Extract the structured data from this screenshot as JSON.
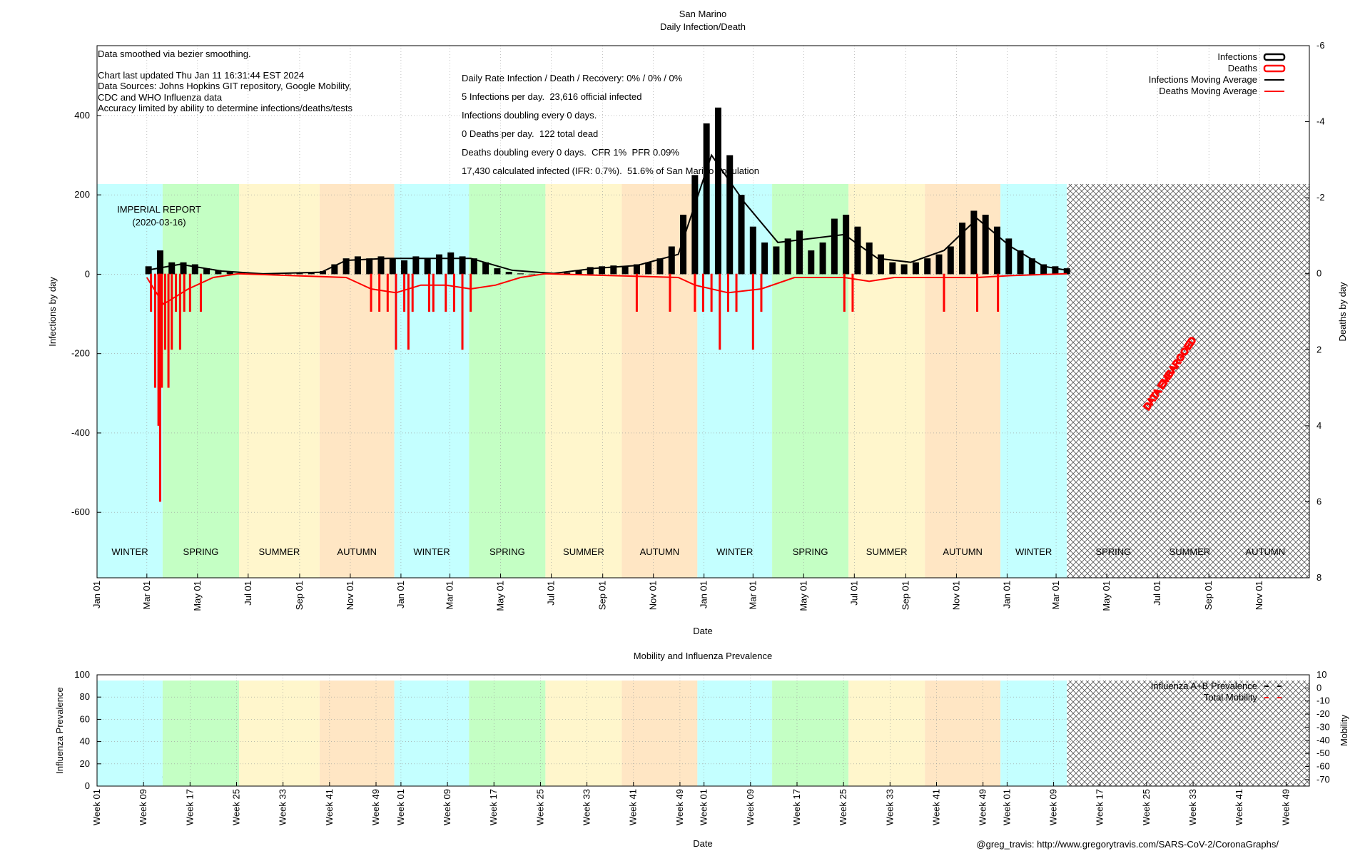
{
  "chart_data": [
    {
      "type": "bar",
      "title": "San Marino",
      "subtitle": "Daily Infection/Death",
      "x_label": "Date",
      "y_label": "Infections by day",
      "y2_label": "Deaths by day",
      "notes": [
        "Data smoothed via bezier smoothing.",
        "Chart last updated Thu Jan 11 16:31:44 EST 2024",
        "Data Sources: Johns Hopkins GIT repository, Google Mobility,",
        "CDC and WHO Influenza data",
        "Accuracy limited by ability to determine infections/deaths/tests"
      ],
      "annotations": [
        "Daily Rate Infection / Death / Recovery: 0% / 0% / 0%",
        "5 Infections per day.  23,616 official infected",
        "Infections doubling every 0 days.",
        "0 Deaths per day.  122 total dead",
        "Deaths doubling every 0 days.  CFR 1%  PFR 0.09%",
        "17,430 calculated infected (IFR: 0.7%).  51.6% of San Marino population"
      ],
      "marker_labels": [
        "IMPERIAL REPORT",
        "(2020-03-16)"
      ],
      "embargo": {
        "label": "DATA EMBARGOED",
        "x": [
          1168,
          1460
        ]
      },
      "seasons": [
        {
          "label": "WINTER",
          "x": [
            0,
            79
          ],
          "color": "#c4ffff"
        },
        {
          "label": "SPRING",
          "x": [
            79,
            171
          ],
          "color": "#c4ffc4"
        },
        {
          "label": "SUMMER",
          "x": [
            171,
            268
          ],
          "color": "#fff6cc"
        },
        {
          "label": "AUTUMN",
          "x": [
            268,
            358
          ],
          "color": "#ffe6c4"
        },
        {
          "label": "WINTER",
          "x": [
            358,
            448
          ],
          "color": "#c4ffff"
        },
        {
          "label": "SPRING",
          "x": [
            448,
            540
          ],
          "color": "#c4ffc4"
        },
        {
          "label": "SUMMER",
          "x": [
            540,
            632
          ],
          "color": "#fff6cc"
        },
        {
          "label": "AUTUMN",
          "x": [
            632,
            723
          ],
          "color": "#ffe6c4"
        },
        {
          "label": "WINTER",
          "x": [
            723,
            813
          ],
          "color": "#c4ffff"
        },
        {
          "label": "SPRING",
          "x": [
            813,
            905
          ],
          "color": "#c4ffc4"
        },
        {
          "label": "SUMMER",
          "x": [
            905,
            997
          ],
          "color": "#fff6cc"
        },
        {
          "label": "AUTUMN",
          "x": [
            997,
            1088
          ],
          "color": "#ffe6c4"
        },
        {
          "label": "WINTER",
          "x": [
            1088,
            1168
          ],
          "color": "#c4ffff"
        },
        {
          "label": "SPRING",
          "x": [
            1178,
            1270
          ]
        },
        {
          "label": "SUMMER",
          "x": [
            1270,
            1362
          ]
        },
        {
          "label": "AUTUMN",
          "x": [
            1362,
            1452
          ]
        }
      ],
      "xlim": [
        0,
        1460
      ],
      "xticks": [
        {
          "value": 0,
          "label": "Jan 01"
        },
        {
          "value": 60,
          "label": "Mar 01"
        },
        {
          "value": 121,
          "label": "May 01"
        },
        {
          "value": 182,
          "label": "Jul 01"
        },
        {
          "value": 244,
          "label": "Sep 01"
        },
        {
          "value": 305,
          "label": "Nov 01"
        },
        {
          "value": 366,
          "label": "Jan 01"
        },
        {
          "value": 425,
          "label": "Mar 01"
        },
        {
          "value": 486,
          "label": "May 01"
        },
        {
          "value": 547,
          "label": "Jul 01"
        },
        {
          "value": 609,
          "label": "Sep 01"
        },
        {
          "value": 670,
          "label": "Nov 01"
        },
        {
          "value": 731,
          "label": "Jan 01"
        },
        {
          "value": 790,
          "label": "Mar 01"
        },
        {
          "value": 851,
          "label": "May 01"
        },
        {
          "value": 912,
          "label": "Jul 01"
        },
        {
          "value": 974,
          "label": "Sep 01"
        },
        {
          "value": 1035,
          "label": "Nov 01"
        },
        {
          "value": 1096,
          "label": "Jan 01"
        },
        {
          "value": 1155,
          "label": "Mar 01"
        },
        {
          "value": 1216,
          "label": "May 01"
        },
        {
          "value": 1277,
          "label": "Jul 01"
        },
        {
          "value": 1339,
          "label": "Sep 01"
        },
        {
          "value": 1400,
          "label": "Nov 01"
        }
      ],
      "ylim": [
        -765,
        576
      ],
      "yticks": [
        -600,
        -400,
        -200,
        0,
        200,
        400
      ],
      "y2lim": [
        8,
        -6
      ],
      "y2ticks": [
        -6,
        -4,
        -2,
        0,
        2,
        4,
        6,
        8
      ],
      "grid": true,
      "legend": "upper right",
      "series": [
        {
          "name": "Infections",
          "type": "bar",
          "color": "#000000",
          "x": [
            62,
            76,
            90,
            104,
            118,
            132,
            146,
            160,
            174,
            188,
            202,
            216,
            230,
            244,
            258,
            272,
            286,
            300,
            314,
            328,
            342,
            356,
            370,
            384,
            398,
            412,
            426,
            440,
            454,
            468,
            482,
            496,
            510,
            524,
            538,
            552,
            566,
            580,
            594,
            608,
            622,
            636,
            650,
            664,
            678,
            692,
            706,
            720,
            734,
            748,
            762,
            776,
            790,
            804,
            818,
            832,
            846,
            860,
            874,
            888,
            902,
            916,
            930,
            944,
            958,
            972,
            986,
            1000,
            1014,
            1028,
            1042,
            1056,
            1070,
            1084,
            1098,
            1112,
            1126,
            1140,
            1154,
            1168
          ],
          "values": [
            20,
            60,
            30,
            30,
            25,
            15,
            10,
            6,
            3,
            1,
            1,
            0,
            1,
            2,
            3,
            8,
            25,
            40,
            45,
            40,
            45,
            40,
            35,
            45,
            40,
            50,
            55,
            45,
            40,
            30,
            15,
            6,
            2,
            1,
            1,
            2,
            4,
            10,
            18,
            20,
            22,
            20,
            25,
            30,
            40,
            70,
            150,
            250,
            380,
            420,
            300,
            200,
            120,
            80,
            70,
            90,
            110,
            60,
            80,
            140,
            150,
            120,
            80,
            50,
            30,
            25,
            30,
            40,
            50,
            70,
            130,
            160,
            150,
            120,
            90,
            60,
            40,
            25,
            20,
            15
          ]
        },
        {
          "name": "Deaths",
          "type": "bar",
          "axis": "y2",
          "color": "#ff0000",
          "x": [
            65,
            70,
            74,
            76,
            78,
            82,
            86,
            90,
            95,
            100,
            105,
            112,
            125,
            330,
            340,
            350,
            360,
            370,
            375,
            380,
            400,
            405,
            420,
            430,
            440,
            450,
            650,
            690,
            720,
            730,
            740,
            750,
            760,
            770,
            790,
            800,
            900,
            910,
            1020,
            1060,
            1085
          ],
          "values": [
            1,
            3,
            4,
            6,
            3,
            2,
            3,
            2,
            1,
            2,
            1,
            1,
            1,
            1,
            1,
            1,
            2,
            1,
            2,
            1,
            1,
            1,
            1,
            1,
            2,
            1,
            1,
            1,
            1,
            1,
            1,
            2,
            1,
            1,
            2,
            1,
            1,
            1,
            1,
            1,
            1
          ]
        },
        {
          "name": "Infections Moving Average",
          "type": "line",
          "color": "#000000",
          "x": [
            60,
            100,
            150,
            200,
            270,
            300,
            350,
            400,
            450,
            500,
            550,
            600,
            650,
            700,
            740,
            780,
            820,
            860,
            900,
            940,
            980,
            1020,
            1060,
            1100,
            1140,
            1168
          ],
          "values": [
            10,
            25,
            8,
            1,
            5,
            35,
            40,
            40,
            40,
            10,
            2,
            15,
            22,
            50,
            300,
            180,
            80,
            90,
            100,
            40,
            30,
            60,
            140,
            70,
            20,
            10
          ]
        },
        {
          "name": "Deaths Moving Average",
          "type": "line",
          "axis": "y2",
          "color": "#ff0000",
          "x": [
            60,
            80,
            110,
            140,
            170,
            300,
            330,
            360,
            390,
            420,
            450,
            480,
            510,
            540,
            700,
            720,
            760,
            800,
            840,
            900,
            930,
            960,
            1000,
            1060,
            1100,
            1168
          ],
          "values": [
            0.1,
            0.8,
            0.4,
            0.1,
            0,
            0.1,
            0.4,
            0.5,
            0.3,
            0.3,
            0.4,
            0.3,
            0.1,
            0,
            0.1,
            0.3,
            0.5,
            0.4,
            0.1,
            0.1,
            0.2,
            0.1,
            0.1,
            0.1,
            0.05,
            0
          ]
        }
      ]
    },
    {
      "type": "line",
      "title": "Mobility and Influenza Prevalence",
      "x_label": "Date",
      "y_label": "Influenza Prevalence",
      "y2_label": "Mobility",
      "embargo": {
        "x": [
          1168,
          1460
        ]
      },
      "seasons": [
        {
          "x": [
            0,
            79
          ],
          "color": "#c4ffff"
        },
        {
          "x": [
            79,
            171
          ],
          "color": "#c4ffc4"
        },
        {
          "x": [
            171,
            268
          ],
          "color": "#fff6cc"
        },
        {
          "x": [
            268,
            358
          ],
          "color": "#ffe6c4"
        },
        {
          "x": [
            358,
            448
          ],
          "color": "#c4ffff"
        },
        {
          "x": [
            448,
            540
          ],
          "color": "#c4ffc4"
        },
        {
          "x": [
            540,
            632
          ],
          "color": "#fff6cc"
        },
        {
          "x": [
            632,
            723
          ],
          "color": "#ffe6c4"
        },
        {
          "x": [
            723,
            813
          ],
          "color": "#c4ffff"
        },
        {
          "x": [
            813,
            905
          ],
          "color": "#c4ffc4"
        },
        {
          "x": [
            905,
            997
          ],
          "color": "#fff6cc"
        },
        {
          "x": [
            997,
            1088
          ],
          "color": "#ffe6c4"
        },
        {
          "x": [
            1088,
            1168
          ],
          "color": "#c4ffff"
        }
      ],
      "xlim": [
        0,
        1460
      ],
      "xticks": [
        {
          "value": 0,
          "label": "Week 01"
        },
        {
          "value": 56,
          "label": "Week 09"
        },
        {
          "value": 112,
          "label": "Week 17"
        },
        {
          "value": 168,
          "label": "Week 25"
        },
        {
          "value": 224,
          "label": "Week 33"
        },
        {
          "value": 280,
          "label": "Week 41"
        },
        {
          "value": 336,
          "label": "Week 49"
        },
        {
          "value": 366,
          "label": "Week 01"
        },
        {
          "value": 422,
          "label": "Week 09"
        },
        {
          "value": 478,
          "label": "Week 17"
        },
        {
          "value": 534,
          "label": "Week 25"
        },
        {
          "value": 590,
          "label": "Week 33"
        },
        {
          "value": 646,
          "label": "Week 41"
        },
        {
          "value": 702,
          "label": "Week 49"
        },
        {
          "value": 731,
          "label": "Week 01"
        },
        {
          "value": 787,
          "label": "Week 09"
        },
        {
          "value": 843,
          "label": "Week 17"
        },
        {
          "value": 899,
          "label": "Week 25"
        },
        {
          "value": 955,
          "label": "Week 33"
        },
        {
          "value": 1011,
          "label": "Week 41"
        },
        {
          "value": 1067,
          "label": "Week 49"
        },
        {
          "value": 1096,
          "label": "Week 01"
        },
        {
          "value": 1152,
          "label": "Week 09"
        },
        {
          "value": 1208,
          "label": "Week 17"
        },
        {
          "value": 1264,
          "label": "Week 25"
        },
        {
          "value": 1320,
          "label": "Week 33"
        },
        {
          "value": 1376,
          "label": "Week 41"
        },
        {
          "value": 1432,
          "label": "Week 49"
        }
      ],
      "ylim": [
        0,
        100
      ],
      "yticks": [
        0,
        20,
        40,
        60,
        80,
        100
      ],
      "y2lim": [
        -75,
        10
      ],
      "y2ticks": [
        10,
        0,
        -10,
        -20,
        -30,
        -40,
        -50,
        -60,
        -70
      ],
      "grid": true,
      "legend": "upper right",
      "series": [
        {
          "name": "Influenza A+B Prevalence",
          "type": "line",
          "color": "#000000",
          "x": [],
          "values": []
        },
        {
          "name": "Total Mobility",
          "type": "line",
          "axis": "y2",
          "color": "#ff0000",
          "x": [],
          "values": []
        }
      ]
    }
  ],
  "footer": "@greg_travis: http://www.gregorytravis.com/SARS-CoV-2/CoronaGraphs/"
}
